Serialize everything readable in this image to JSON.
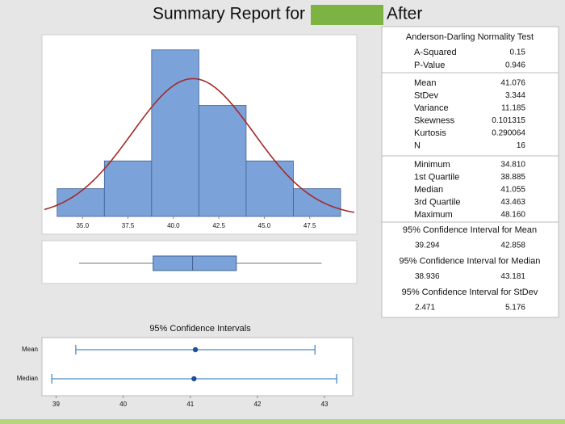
{
  "title": {
    "lead": "Summary Report for",
    "tail": "After"
  },
  "chart_data": [
    {
      "type": "histogram",
      "bins": [
        33.6,
        36.2,
        38.8,
        41.4,
        44.0,
        46.6,
        49.2
      ],
      "counts": [
        1,
        2,
        6,
        4,
        2,
        1
      ],
      "color": "#7ba3d9",
      "edge_color": "#3f5f8f",
      "fit_mean": 41.076,
      "fit_sd": 3.344,
      "fit_color": "#a52a2a",
      "xlim": [
        32.9,
        50.0
      ],
      "ylim": [
        0,
        6.4
      ],
      "xticks": [
        {
          "value": 35,
          "label": "35.0"
        },
        37.5,
        {
          "value": 40,
          "label": "40.0"
        },
        42.5,
        {
          "value": 45,
          "label": "45.0"
        },
        47.5
      ]
    },
    {
      "type": "box",
      "min": 34.81,
      "q1": 38.885,
      "median": 41.055,
      "q3": 43.463,
      "max": 48.16,
      "color": "#7ba3d9",
      "edge_color": "#3f5f8f",
      "xlim": [
        32.9,
        50.0
      ]
    },
    {
      "type": "interval",
      "title": "95% Confidence Intervals",
      "categories": [
        "Mean",
        "Median"
      ],
      "values": [
        41.076,
        41.055
      ],
      "lower": [
        39.294,
        38.936
      ],
      "upper": [
        42.858,
        43.181
      ],
      "color": "#4a8ac4",
      "point_color": "#1f4e9c",
      "xlim": [
        38.79,
        43.42
      ],
      "xticks": [
        39,
        40,
        41,
        42,
        43
      ]
    }
  ],
  "stats": {
    "test": {
      "title": "Anderson-Darling Normality Test",
      "rows": [
        [
          "A-Squared",
          "0.15"
        ],
        [
          "P-Value",
          "0.946"
        ]
      ]
    },
    "moments": {
      "rows": [
        [
          "Mean",
          "41.076"
        ],
        [
          "StDev",
          "3.344"
        ],
        [
          "Variance",
          "11.185"
        ],
        [
          "Skewness",
          "0.101315"
        ],
        [
          "Kurtosis",
          "0.290064"
        ],
        [
          "N",
          "16"
        ]
      ]
    },
    "quantiles": {
      "rows": [
        [
          "Minimum",
          "34.810"
        ],
        [
          "1st Quartile",
          "38.885"
        ],
        [
          "Median",
          "41.055"
        ],
        [
          "3rd Quartile",
          "43.463"
        ],
        [
          "Maximum",
          "48.160"
        ]
      ]
    },
    "intervals": [
      {
        "title": "95% Confidence Interval for Mean",
        "low": "39.294",
        "high": "42.858"
      },
      {
        "title": "95% Confidence Interval for Median",
        "low": "38.936",
        "high": "43.181"
      },
      {
        "title": "95% Confidence Interval for StDev",
        "low": "2.471",
        "high": "5.176"
      }
    ]
  }
}
